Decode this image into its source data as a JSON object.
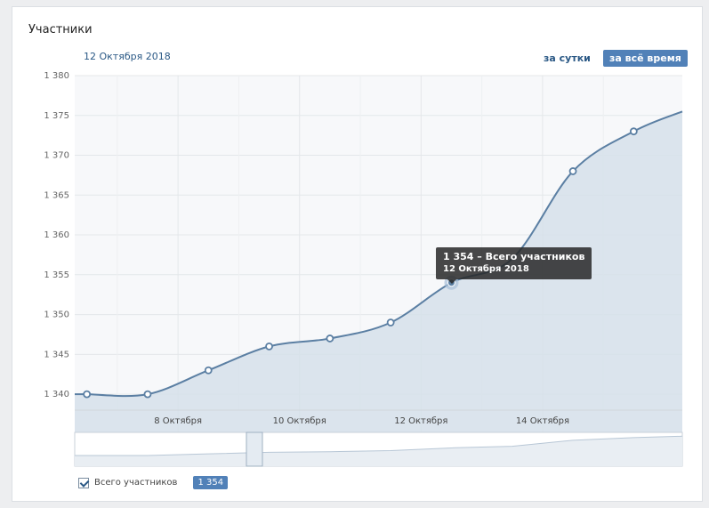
{
  "header": {
    "title": "Участники",
    "date": "12 Октября 2018",
    "tab_day": "за сутки",
    "tab_all": "за всё время"
  },
  "tooltip": {
    "value_line": "1 354 – Всего участников",
    "date_line": "12 Октября 2018"
  },
  "legend": {
    "label": "Всего участников",
    "badge": "1 354",
    "checked": true
  },
  "colors": {
    "line": "#5b7fa3",
    "area": "#d6e0ea",
    "accent": "#5181b8"
  },
  "chart_data": {
    "type": "area",
    "title": "Участники",
    "ylim": [
      1338,
      1380
    ],
    "yticks": [
      "1 340",
      "1 345",
      "1 350",
      "1 355",
      "1 360",
      "1 365",
      "1 370",
      "1 375",
      "1 380"
    ],
    "ytick_values": [
      1340,
      1345,
      1350,
      1355,
      1360,
      1365,
      1370,
      1375,
      1380
    ],
    "xlim": [
      6.3,
      16.3
    ],
    "xticks": [
      "8 Октября",
      "10 Октября",
      "12 Октября",
      "14 Октября"
    ],
    "xtick_values": [
      8,
      10,
      12,
      14
    ],
    "grid": true,
    "legend_position": "bottom-left",
    "series": [
      {
        "name": "Всего участников",
        "x": [
          6.5,
          7.5,
          8.5,
          9.5,
          10.5,
          11.5,
          12.5,
          13.5,
          14.5,
          15.5,
          16.3
        ],
        "values": [
          1340,
          1340,
          1343,
          1346,
          1347,
          1349,
          1354,
          1357,
          1368,
          1373,
          1375.5
        ],
        "markers": [
          true,
          true,
          true,
          true,
          true,
          true,
          true,
          false,
          true,
          true,
          false
        ]
      }
    ],
    "highlight_index": 6
  }
}
